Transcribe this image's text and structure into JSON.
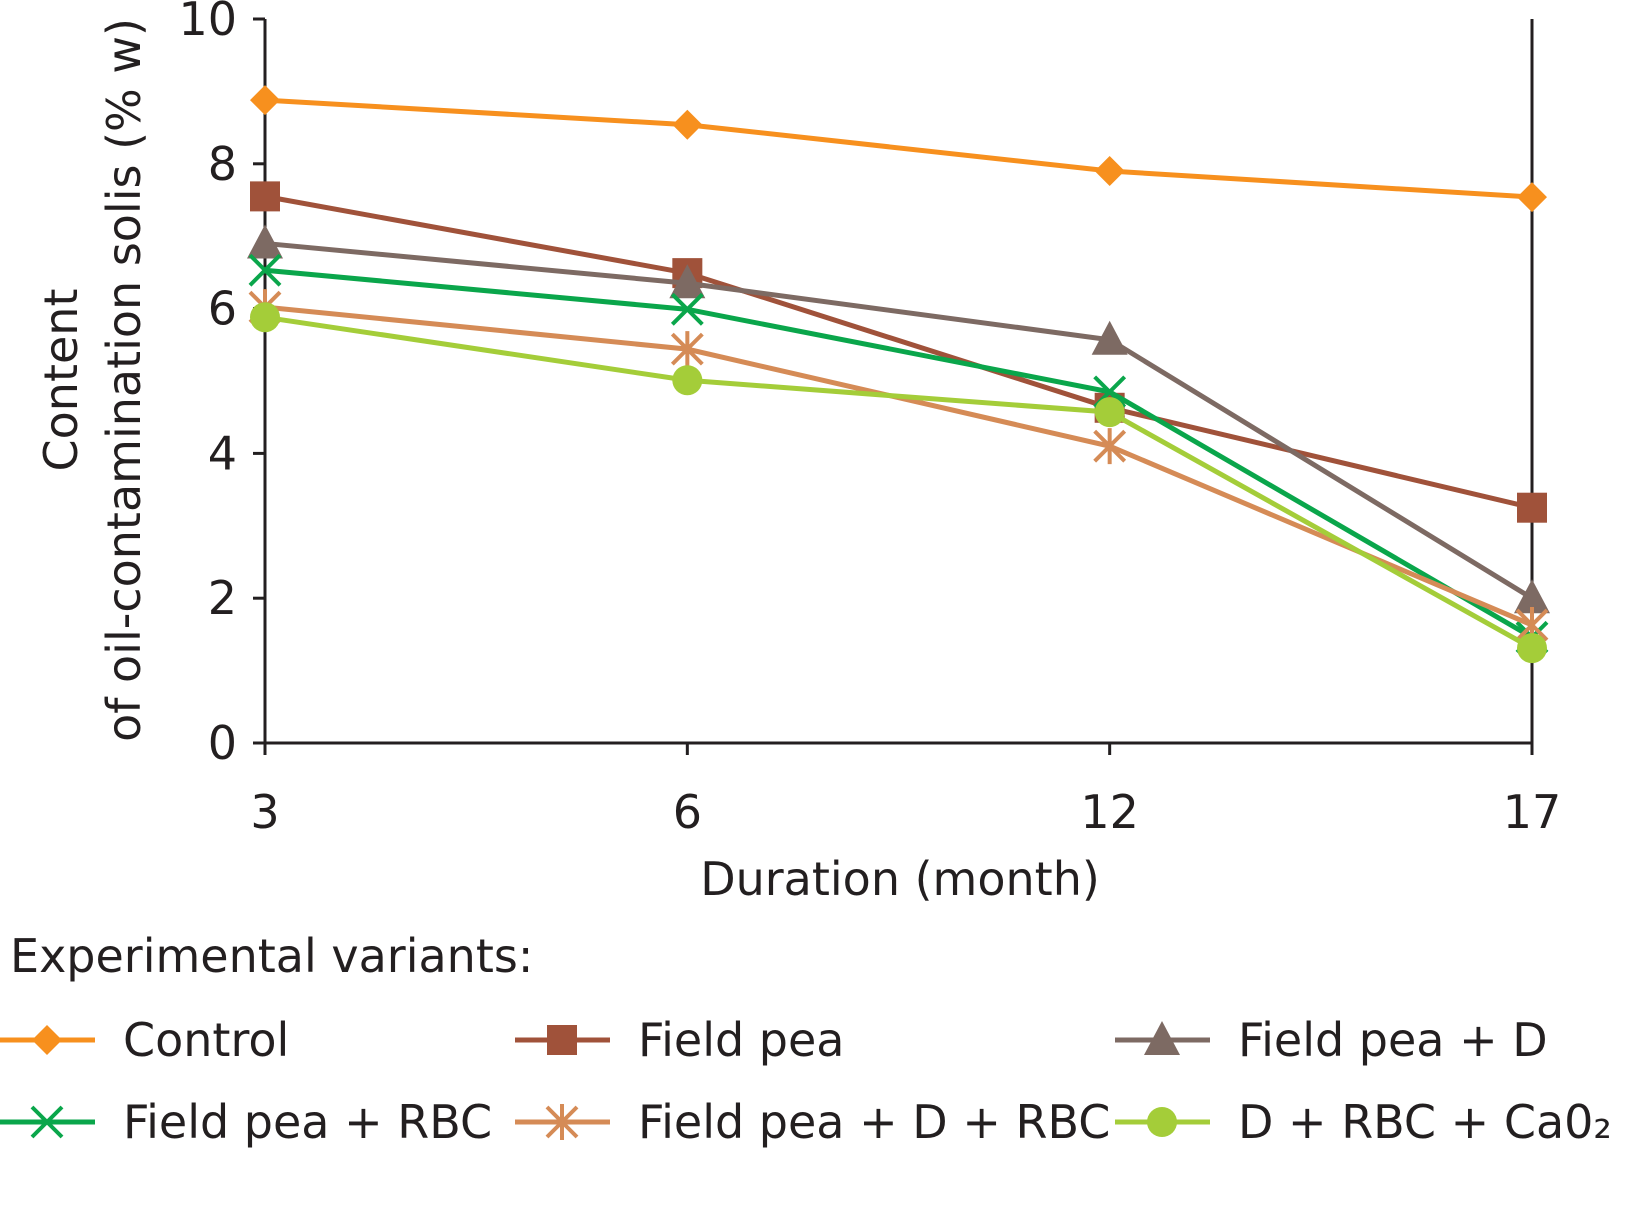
{
  "chart_data": {
    "type": "line",
    "title": "",
    "xlabel": "Duration (month)",
    "ylabel": [
      "Content",
      "of oil-contamination solis (% w)"
    ],
    "categories": [
      "3",
      "6",
      "12",
      "17"
    ],
    "ylim": [
      0,
      10
    ],
    "yticks": [
      "0",
      "2",
      "4",
      "6",
      "8",
      "10"
    ],
    "grid": false,
    "legend_title": "Experimental variants:",
    "legend_position": "bottom",
    "series": [
      {
        "name": "Control",
        "values": [
          8.88,
          8.54,
          7.9,
          7.54
        ],
        "color": "#f7901e",
        "marker": "diamond"
      },
      {
        "name": "Field pea",
        "values": [
          7.55,
          6.49,
          4.63,
          3.25
        ],
        "color": "#a0523a",
        "marker": "square"
      },
      {
        "name": "Field pea + D",
        "values": [
          6.9,
          6.35,
          5.57,
          2.0
        ],
        "color": "#7d6a63",
        "marker": "triangle"
      },
      {
        "name": "Field pea + RBC",
        "values": [
          6.53,
          5.99,
          4.85,
          1.46
        ],
        "color": "#0aa64b",
        "marker": "x"
      },
      {
        "name": "Field pea + D + RBC",
        "values": [
          6.02,
          5.44,
          4.1,
          1.63
        ],
        "color": "#d58b56",
        "marker": "asterisk"
      },
      {
        "name": "D + RBC + Ca0₂",
        "values": [
          5.88,
          5.01,
          4.57,
          1.31
        ],
        "color": "#a4cd39",
        "marker": "circle"
      }
    ]
  }
}
